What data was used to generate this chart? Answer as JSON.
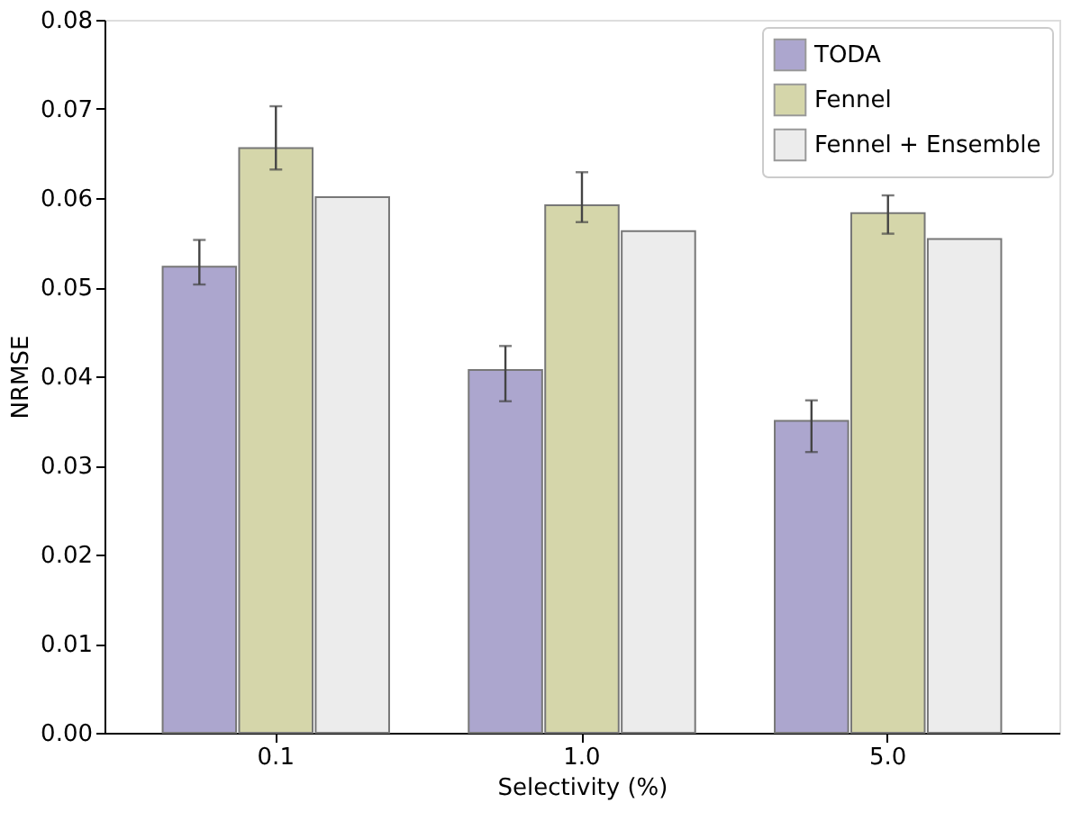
{
  "chart_data": {
    "type": "bar",
    "xlabel": "Selectivity (%)",
    "ylabel": "NRMSE",
    "categories": [
      "0.1",
      "1.0",
      "5.0"
    ],
    "series": [
      {
        "name": "TODA",
        "color": "#aca6ce",
        "values": [
          0.0523,
          0.0407,
          0.035
        ],
        "errors": [
          [
            0.0503,
            0.0553
          ],
          [
            0.0372,
            0.0434
          ],
          [
            0.0315,
            0.0373
          ]
        ]
      },
      {
        "name": "Fennel",
        "color": "#d5d6aa",
        "values": [
          0.0656,
          0.0592,
          0.0583
        ],
        "errors": [
          [
            0.0632,
            0.0703
          ],
          [
            0.0573,
            0.0629
          ],
          [
            0.056,
            0.0603
          ]
        ]
      },
      {
        "name": "Fennel + Ensemble",
        "color": "#ececec",
        "values": [
          0.0601,
          0.0563,
          0.0554
        ]
      }
    ],
    "ylim": [
      0,
      0.08
    ],
    "yticks": [
      {
        "value": 0,
        "label": "0.00"
      },
      {
        "value": 0.01,
        "label": "0.01"
      },
      {
        "value": 0.02,
        "label": "0.02"
      },
      {
        "value": 0.03,
        "label": "0.03"
      },
      {
        "value": 0.04,
        "label": "0.04"
      },
      {
        "value": 0.05,
        "label": "0.05"
      },
      {
        "value": 0.06,
        "label": "0.06"
      },
      {
        "value": 0.07,
        "label": "0.07"
      },
      {
        "value": 0.08,
        "label": "0.08"
      }
    ],
    "grid": false,
    "legend": "top right"
  }
}
